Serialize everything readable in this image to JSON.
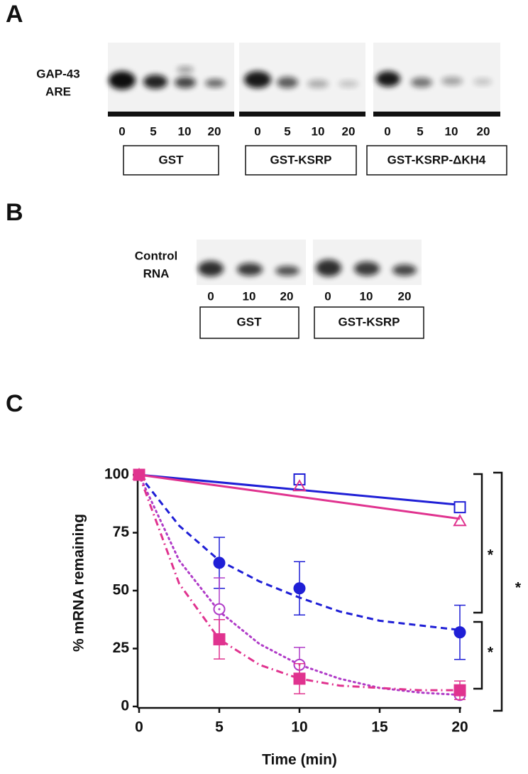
{
  "panel_a": {
    "letter": "A",
    "row_label": [
      "GAP-43",
      "ARE"
    ],
    "groups": [
      {
        "label": "GST",
        "lanes": [
          "0",
          "5",
          "10",
          "20"
        ]
      },
      {
        "label": "GST-KSRP",
        "lanes": [
          "0",
          "5",
          "10",
          "20"
        ]
      },
      {
        "label": "GST-KSRP-ΔKH4",
        "lanes": [
          "0",
          "5",
          "10",
          "20"
        ]
      }
    ]
  },
  "panel_b": {
    "letter": "B",
    "row_label": [
      "Control",
      "RNA"
    ],
    "groups": [
      {
        "label": "GST",
        "lanes": [
          "0",
          "10",
          "20"
        ]
      },
      {
        "label": "GST-KSRP",
        "lanes": [
          "0",
          "10",
          "20"
        ]
      }
    ]
  },
  "chart_data": {
    "type": "scatter",
    "letter": "C",
    "x_label": "Time (min)",
    "y_label": "% mRNA remaining",
    "xlim": [
      0,
      20
    ],
    "xticks": [
      0,
      5,
      10,
      15,
      20
    ],
    "ylim": [
      0,
      100
    ],
    "yticks": [
      0,
      25,
      50,
      75,
      100
    ],
    "series": [
      {
        "color": "#1f1fd6",
        "marker": "square-open",
        "x": [
          0,
          10,
          20
        ],
        "values": [
          100,
          98,
          86
        ]
      },
      {
        "color": "#e0338f",
        "marker": "triangle-open",
        "x": [
          0,
          10,
          20
        ],
        "values": [
          100,
          95,
          80
        ]
      },
      {
        "color": "#1f1fd6",
        "marker": "circle",
        "x": [
          0,
          5,
          10,
          20
        ],
        "values": [
          100,
          62,
          51,
          32
        ],
        "errors": [
          0,
          11,
          11.5,
          11.7
        ]
      },
      {
        "color": "#b03cc8",
        "marker": "circle-dot-open",
        "x": [
          0,
          5,
          10,
          20
        ],
        "values": [
          100,
          42,
          18,
          5
        ],
        "errors": [
          0,
          13.5,
          7.5,
          0
        ]
      },
      {
        "color": "#e0338f",
        "marker": "square",
        "x": [
          0,
          5,
          10,
          20
        ],
        "values": [
          100,
          29,
          12,
          7
        ],
        "errors": [
          0,
          8.5,
          6.5,
          4
        ]
      }
    ],
    "fits": [
      {
        "color": "#1f1fd6",
        "dash": "solid",
        "x": [
          0,
          20
        ],
        "values": [
          100,
          87
        ]
      },
      {
        "color": "#e0338f",
        "dash": "solid",
        "x": [
          0,
          20
        ],
        "values": [
          100,
          81
        ]
      },
      {
        "color": "#1f1fd6",
        "dash": "dashed",
        "x": [
          0,
          2.5,
          5,
          7.5,
          10,
          12.5,
          15,
          17.5,
          20
        ],
        "values": [
          100,
          78,
          63,
          54,
          47,
          41,
          37,
          35,
          33
        ]
      },
      {
        "color": "#b03cc8",
        "dash": "dotted",
        "x": [
          0,
          2.5,
          5,
          7.5,
          10,
          12.5,
          15,
          17.5,
          20
        ],
        "values": [
          100,
          63,
          41,
          27,
          18,
          12,
          8,
          6,
          5
        ]
      },
      {
        "color": "#e0338f",
        "dash": "dashdot",
        "x": [
          0,
          2.5,
          5,
          7.5,
          10,
          12.5,
          15,
          17.5,
          20
        ],
        "values": [
          100,
          53,
          29,
          18,
          12,
          9,
          8,
          7,
          7
        ]
      }
    ],
    "annotations": [
      "*",
      "*",
      "*"
    ]
  }
}
